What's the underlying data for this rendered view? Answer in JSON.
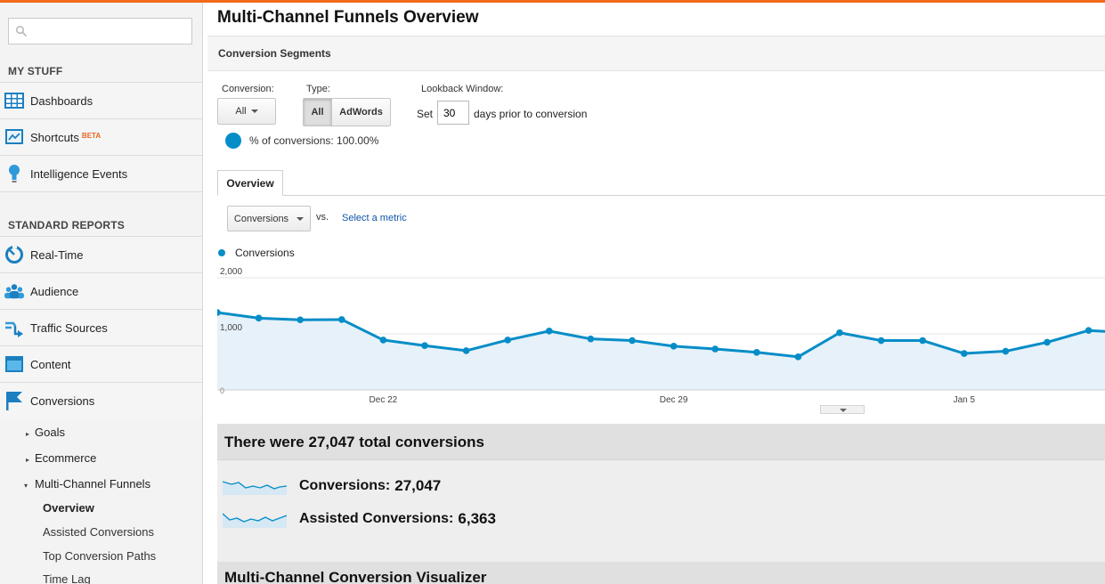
{
  "colors": {
    "accent": "#058dc7",
    "top_bar": "#f26a1b",
    "beta": "#e9651e",
    "link": "#1155aa"
  },
  "sidebar": {
    "search": {
      "placeholder": "",
      "value": ""
    },
    "my_stuff_label": "MY STUFF",
    "my_stuff": [
      {
        "label": "Dashboards",
        "icon": "dashboard-grid-icon"
      },
      {
        "label": "Shortcuts",
        "badge": "BETA",
        "icon": "shortcut-icon"
      },
      {
        "label": "Intelligence Events",
        "icon": "lightbulb-icon"
      }
    ],
    "standard_reports_label": "STANDARD REPORTS",
    "reports": [
      {
        "label": "Real-Time",
        "icon": "realtime-clock-icon"
      },
      {
        "label": "Audience",
        "icon": "audience-people-icon"
      },
      {
        "label": "Traffic Sources",
        "icon": "traffic-arrows-icon"
      },
      {
        "label": "Content",
        "icon": "content-window-icon"
      },
      {
        "label": "Conversions",
        "icon": "flag-icon"
      }
    ],
    "conversions_children": [
      {
        "label": "Goals",
        "expanded": false
      },
      {
        "label": "Ecommerce",
        "expanded": false
      },
      {
        "label": "Multi-Channel Funnels",
        "expanded": true
      }
    ],
    "mcf_children": [
      {
        "label": "Overview",
        "active": true
      },
      {
        "label": "Assisted Conversions",
        "active": false
      },
      {
        "label": "Top Conversion Paths",
        "active": false
      },
      {
        "label": "Time Lag",
        "active": false
      }
    ]
  },
  "main": {
    "title": "Multi-Channel Funnels Overview",
    "segments_label": "Conversion Segments",
    "conversion_label": "Conversion:",
    "conversion_value": "All",
    "type_label": "Type:",
    "type_options": [
      "All",
      "AdWords"
    ],
    "type_selected": "All",
    "lookback_label": "Lookback Window:",
    "set_text": "Set",
    "days_value": "30",
    "days_suffix": "days prior to conversion",
    "pct_text": "% of conversions: 100.00%",
    "tab": "Overview",
    "metric_value": "Conversions",
    "vs_text": "vs.",
    "select_metric": "Select a metric",
    "legend_label": "Conversions",
    "summary_title": "There were 27,047 total conversions",
    "stats": [
      {
        "label": "Conversions:",
        "value": "27,047"
      },
      {
        "label": "Assisted Conversions:",
        "value": "6,363"
      }
    ],
    "visualizer_title": "Multi-Channel Conversion Visualizer"
  },
  "chart_data": {
    "type": "area",
    "series": [
      {
        "name": "Conversions",
        "values": [
          1380,
          1280,
          1250,
          1255,
          890,
          790,
          700,
          890,
          1050,
          910,
          880,
          780,
          730,
          670,
          590,
          1020,
          880,
          880,
          650,
          690,
          850,
          1060,
          1020
        ]
      }
    ],
    "x_tick_labels": [
      {
        "label": "Dec 22",
        "index": 4
      },
      {
        "label": "Dec 29",
        "index": 11
      },
      {
        "label": "Jan 5",
        "index": 18
      }
    ],
    "y_tick_labels": [
      "2,000",
      "1,000",
      "0"
    ],
    "ylim": [
      0,
      2000
    ],
    "grid": true,
    "legend": "top-left"
  }
}
